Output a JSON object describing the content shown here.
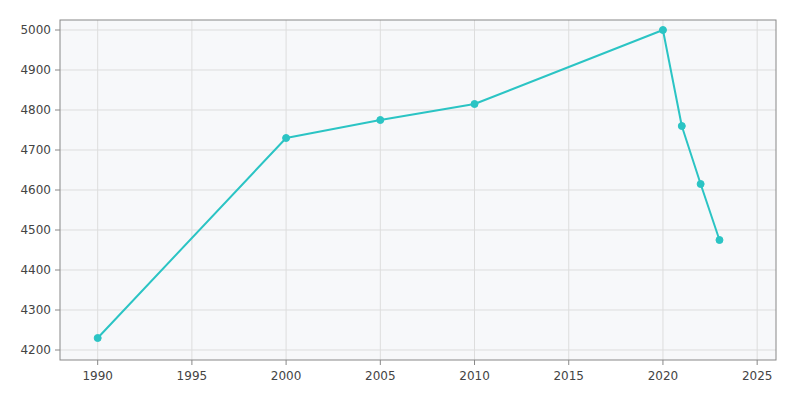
{
  "chart_data": {
    "type": "line",
    "x": [
      1990,
      2000,
      2005,
      2010,
      2020,
      2021,
      2022,
      2023
    ],
    "values": [
      4230,
      4730,
      4775,
      4815,
      5000,
      4760,
      4615,
      4475
    ],
    "color": "#2BC4C4",
    "marker": "circle",
    "xlim": [
      1988,
      2026
    ],
    "ylim": [
      4175,
      5025
    ],
    "xticks": [
      1990,
      1995,
      2000,
      2005,
      2010,
      2015,
      2020,
      2025
    ],
    "yticks": [
      4200,
      4300,
      4400,
      4500,
      4600,
      4700,
      4800,
      4900,
      5000
    ],
    "grid": true
  }
}
